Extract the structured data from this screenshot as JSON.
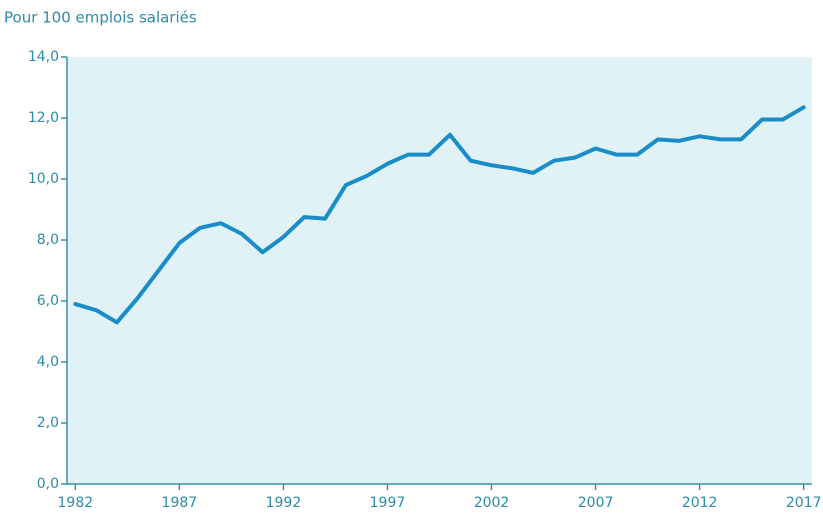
{
  "chart_data": {
    "type": "line",
    "title": "Pour 100 emplois salariés",
    "x": [
      1982,
      1983,
      1984,
      1985,
      1986,
      1987,
      1988,
      1989,
      1990,
      1991,
      1992,
      1993,
      1994,
      1995,
      1996,
      1997,
      1998,
      1999,
      2000,
      2001,
      2002,
      2003,
      2004,
      2005,
      2006,
      2007,
      2008,
      2009,
      2010,
      2011,
      2012,
      2013,
      2014,
      2015,
      2016,
      2017
    ],
    "series": [
      {
        "name": null,
        "color": "#1a8cc8",
        "values": [
          5.9,
          5.7,
          5.3,
          6.1,
          7.0,
          7.9,
          8.4,
          8.55,
          8.2,
          7.6,
          8.1,
          8.75,
          8.7,
          9.8,
          10.1,
          10.5,
          10.8,
          10.8,
          11.45,
          10.6,
          10.45,
          10.35,
          10.2,
          10.6,
          10.7,
          11.0,
          10.8,
          10.8,
          11.3,
          11.25,
          11.4,
          11.3,
          11.3,
          11.95,
          11.95,
          12.35
        ]
      }
    ],
    "xlim": [
      1981.6,
      2017.4
    ],
    "ylim": [
      0,
      14
    ],
    "xticks": [
      1982,
      1987,
      1992,
      1997,
      2002,
      2007,
      2012,
      2017
    ],
    "yticks": [
      {
        "value": 0,
        "label": "0,0"
      },
      {
        "value": 2,
        "label": "2,0"
      },
      {
        "value": 4,
        "label": "4,0"
      },
      {
        "value": 6,
        "label": "6,0"
      },
      {
        "value": 8,
        "label": "8,0"
      },
      {
        "value": 10,
        "label": "10,0"
      },
      {
        "value": 12,
        "label": "12,0"
      },
      {
        "value": 14,
        "label": "14,0"
      }
    ],
    "background": "#e1f2f7",
    "axis_color": "#3a8fa8"
  }
}
